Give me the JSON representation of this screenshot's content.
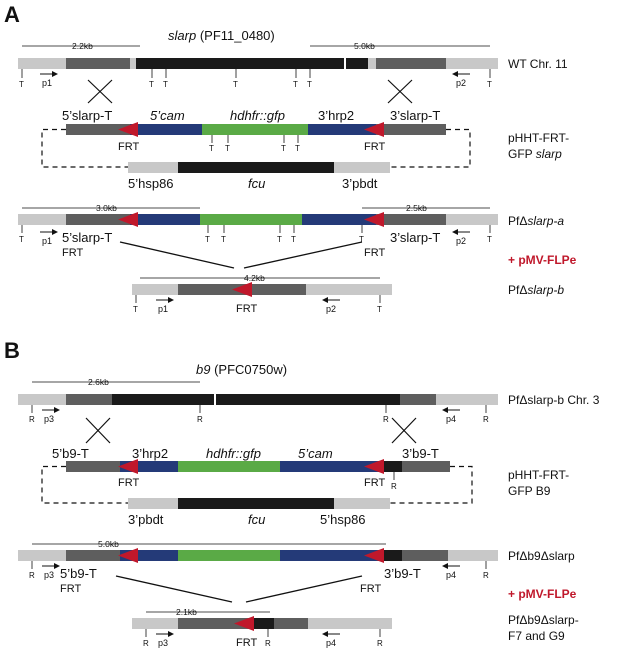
{
  "panels": {
    "A": {
      "letter": "A",
      "gene_title": "slarp",
      "gene_id": "(PF11_0480)",
      "row1_label": "WT Chr. 11",
      "row1_left_size": "2.2kb",
      "row1_right_size": "5.0kb",
      "plasmid_label_line1": "pHHT-FRT-",
      "plasmid_label_line2": "GFP",
      "plasmid_label_line2_italic": "slarp",
      "five_slarp_t": "5’slarp-T",
      "three_slarp_t": "3’slarp-T",
      "five_cam": "5’cam",
      "hdhfr_gfp": "hdhfr::gfp",
      "three_hrp2": "3’hrp2",
      "five_hsp86": "5’hsp86",
      "fcu": "fcu",
      "three_pbdt": "3’pbdt",
      "frt": "FRT",
      "t_marker": "T",
      "primer_p1": "p1",
      "primer_p2": "p2",
      "row3_label_prefix": "PfΔ",
      "row3_label_gene": "slarp-a",
      "row3_left_size": "3.0kb",
      "row3_right_size": "2.5kb",
      "flpe_label": "+ pMV-FLPe",
      "row4_label_prefix": "PfΔ",
      "row4_label_gene": "slarp-b",
      "row4_size": "4.2kb"
    },
    "B": {
      "letter": "B",
      "gene_title": "b9",
      "gene_id": "(PFC0750w)",
      "row1_label": "PfΔslarp-b Chr. 3",
      "row1_size": "2.6kb",
      "five_b9_t": "5’b9-T",
      "three_b9_t": "3’b9-T",
      "three_hrp2": "3’hrp2",
      "hdhfr_gfp": "hdhfr::gfp",
      "five_cam": "5’cam",
      "three_pbdt": "3’pbdt",
      "fcu": "fcu",
      "five_hsp86": "5’hsp86",
      "plasmid_label_line1": "pHHT-FRT-",
      "plasmid_label_line2": "GFP B9",
      "frt": "FRT",
      "r_marker": "R",
      "primer_p3": "p3",
      "primer_p4": "p4",
      "row3_label": "PfΔb9Δslarp",
      "row3_size": "5.0kb",
      "flpe_label": "+ pMV-FLPe",
      "row4_label_line1": "PfΔb9Δslarp-",
      "row4_label_line2": "F7 and G9",
      "row4_size": "2.1kb"
    }
  },
  "colors": {
    "flank_light": "#c8c8c8",
    "flank_dark": "#5e5e5e",
    "gene_black": "#1a1a1a",
    "cam_blue": "#243a78",
    "gfp_green": "#5aaa46",
    "frt_red": "#c0182b",
    "flpe_red": "#c0182b"
  }
}
